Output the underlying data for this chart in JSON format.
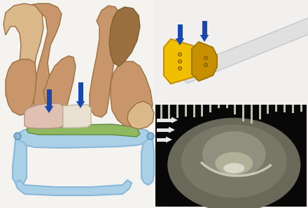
{
  "figure_width": 4.4,
  "figure_height": 2.98,
  "dpi": 100,
  "background_color": "#f0eeec",
  "bone_color": "#c8966a",
  "bone_dark": "#9a7040",
  "bone_light": "#dbb88a",
  "plate_blue": "#8ab8d8",
  "plate_blue_light": "#aad0e8",
  "graft_pink": "#e0c0b0",
  "graft_green": "#90b860",
  "arrow_blue": "#1848b0",
  "yellow_guide": "#f0c000",
  "yellow_dark": "#c89000",
  "bone_gray": "#c8c8c8",
  "bone_gray_light": "#e0e0e0",
  "ct_bg": "#000000",
  "ct_body": "#888878",
  "white_arrow": "#e8e8e8"
}
